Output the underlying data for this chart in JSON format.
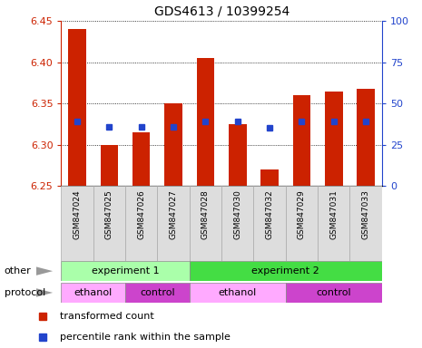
{
  "title": "GDS4613 / 10399254",
  "samples": [
    "GSM847024",
    "GSM847025",
    "GSM847026",
    "GSM847027",
    "GSM847028",
    "GSM847030",
    "GSM847032",
    "GSM847029",
    "GSM847031",
    "GSM847033"
  ],
  "bar_tops": [
    6.44,
    6.3,
    6.315,
    6.35,
    6.405,
    6.325,
    6.27,
    6.36,
    6.365,
    6.368
  ],
  "bar_bottom": 6.25,
  "blue_values": [
    6.328,
    6.322,
    6.322,
    6.322,
    6.328,
    6.328,
    6.321,
    6.328,
    6.328,
    6.328
  ],
  "ylim": [
    6.25,
    6.45
  ],
  "yticks_left": [
    6.25,
    6.3,
    6.35,
    6.4,
    6.45
  ],
  "yticks_right": [
    0,
    25,
    50,
    75,
    100
  ],
  "bar_color": "#cc2200",
  "blue_color": "#2244cc",
  "other_groups": [
    {
      "label": "experiment 1",
      "span": [
        0,
        4
      ],
      "color": "#aaffaa"
    },
    {
      "label": "experiment 2",
      "span": [
        4,
        10
      ],
      "color": "#44dd44"
    }
  ],
  "protocol_groups": [
    {
      "label": "ethanol",
      "span": [
        0,
        2
      ],
      "color": "#ffaaff"
    },
    {
      "label": "control",
      "span": [
        2,
        4
      ],
      "color": "#cc44cc"
    },
    {
      "label": "ethanol",
      "span": [
        4,
        7
      ],
      "color": "#ffaaff"
    },
    {
      "label": "control",
      "span": [
        7,
        10
      ],
      "color": "#cc44cc"
    }
  ],
  "legend_items": [
    {
      "label": "transformed count",
      "color": "#cc2200"
    },
    {
      "label": "percentile rank within the sample",
      "color": "#2244cc"
    }
  ],
  "row_labels": [
    "other",
    "protocol"
  ],
  "bar_width": 0.55,
  "xtick_bg": "#dddddd"
}
